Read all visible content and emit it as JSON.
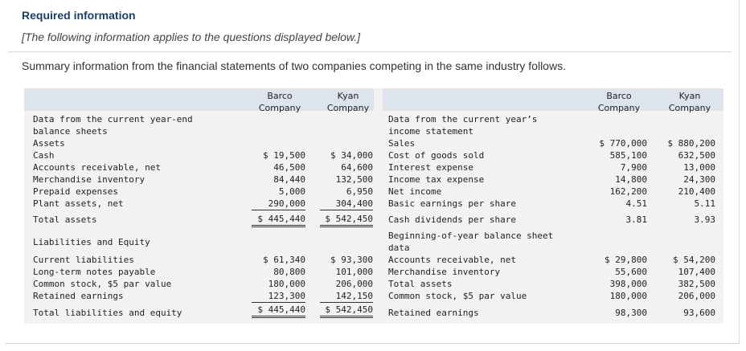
{
  "header": {
    "title": "Required information",
    "note": "[The following information applies to the questions displayed below.]",
    "summary": "Summary information from the financial statements of two companies competing in the same industry follows."
  },
  "columns": {
    "barco_line1": "Barco",
    "barco_line2": "Company",
    "kyan_line1": "Kyan",
    "kyan_line2": "Company"
  },
  "left": {
    "section_line1": "Data from the current year-end",
    "section_line2": "balance sheets",
    "assets_heading": "Assets",
    "rows": [
      {
        "label": "Cash",
        "barco": "$ 19,500",
        "kyan": "$ 34,000"
      },
      {
        "label": "Accounts receivable, net",
        "barco": "46,500",
        "kyan": "64,600"
      },
      {
        "label": "Merchandise inventory",
        "barco": "84,440",
        "kyan": "132,500"
      },
      {
        "label": "Prepaid expenses",
        "barco": "5,000",
        "kyan": "6,950"
      },
      {
        "label": "Plant assets, net",
        "barco": "290,000",
        "kyan": "304,400"
      }
    ],
    "total_assets": {
      "label": "Total assets",
      "barco": "$ 445,440",
      "kyan": "$ 542,450"
    },
    "liab_heading": "Liabilities and Equity",
    "liab_rows": [
      {
        "label": "Current liabilities",
        "barco": "$ 61,340",
        "kyan": "$ 93,300"
      },
      {
        "label": "Long-term notes payable",
        "barco": "80,800",
        "kyan": "101,000"
      },
      {
        "label": "Common stock, $5 par value",
        "barco": "180,000",
        "kyan": "206,000"
      },
      {
        "label": "Retained earnings",
        "barco": "123,300",
        "kyan": "142,150"
      }
    ],
    "total_le": {
      "label": "Total liabilities and equity",
      "barco": "$ 445,440",
      "kyan": "$ 542,450"
    }
  },
  "right": {
    "section_line1": "Data from the current year’s",
    "section_line2": "income statement",
    "rows": [
      {
        "label": "Sales",
        "barco": "$ 770,000",
        "kyan": "$ 880,200"
      },
      {
        "label": "Cost of goods sold",
        "barco": "585,100",
        "kyan": "632,500"
      },
      {
        "label": "Interest expense",
        "barco": "7,900",
        "kyan": "13,000"
      },
      {
        "label": "Income tax expense",
        "barco": "14,800",
        "kyan": "24,300"
      },
      {
        "label": "Net income",
        "barco": "162,200",
        "kyan": "210,400"
      },
      {
        "label": "Basic earnings per share",
        "barco": "4.51",
        "kyan": "5.11"
      },
      {
        "label": "Cash dividends per share",
        "barco": "3.81",
        "kyan": "3.93"
      }
    ],
    "boy_line1": "Beginning-of-year balance sheet",
    "boy_line2": "data",
    "boy_rows": [
      {
        "label": "Accounts receivable, net",
        "barco": "$ 29,800",
        "kyan": "$ 54,200"
      },
      {
        "label": "Merchandise inventory",
        "barco": "55,600",
        "kyan": "107,400"
      },
      {
        "label": "Total assets",
        "barco": "398,000",
        "kyan": "382,500"
      },
      {
        "label": "Common stock, $5 par value",
        "barco": "180,000",
        "kyan": "206,000"
      },
      {
        "label": "Retained earnings",
        "barco": "98,300",
        "kyan": "93,600"
      }
    ]
  }
}
